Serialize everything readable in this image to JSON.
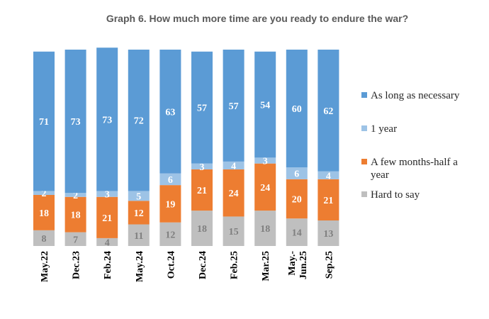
{
  "chart_data": {
    "type": "bar",
    "stacked": true,
    "title": "Graph 6. How much more time are you ready to endure the war?",
    "categories": [
      "May.22",
      "Dec.23",
      "Feb.24",
      "May.24",
      "Oct.24",
      "Dec.24",
      "Feb.25",
      "Mar.25",
      "May.-Jun.25",
      "Sep.25"
    ],
    "series": [
      {
        "name": "Hard to say",
        "color": "#bfbfbf",
        "label_color": "#7f7f7f",
        "values": [
          8,
          7,
          4,
          11,
          12,
          18,
          15,
          18,
          14,
          13
        ]
      },
      {
        "name": "A few months-half a year",
        "color": "#ed7d31",
        "label_color": "#ffffff",
        "values": [
          18,
          18,
          21,
          12,
          19,
          21,
          24,
          24,
          20,
          21
        ]
      },
      {
        "name": "1 year",
        "color": "#9dc3e6",
        "label_color": "#ffffff",
        "values": [
          2,
          2,
          3,
          5,
          6,
          3,
          4,
          3,
          6,
          4
        ]
      },
      {
        "name": "As long as necessary",
        "color": "#5b9bd5",
        "label_color": "#ffffff",
        "values": [
          71,
          73,
          73,
          72,
          63,
          57,
          57,
          54,
          60,
          62
        ]
      }
    ],
    "legend_order": [
      "As long as necessary",
      "1 year",
      "A few months-half a year",
      "Hard to say"
    ],
    "legend_position": "right",
    "ylim": [
      0,
      100
    ],
    "grid": false,
    "stack_order": "Hard to say at bottom, As long as necessary at top"
  }
}
